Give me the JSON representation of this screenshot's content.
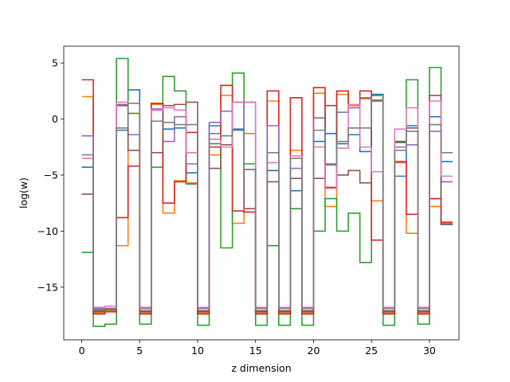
{
  "chart_data": {
    "type": "line",
    "step": "post",
    "title": "",
    "xlabel": "z dimension",
    "ylabel": "log(w)",
    "xlim": [
      -1.55,
      32.55
    ],
    "ylim": [
      -19.7,
      6.5
    ],
    "xticks": [
      0,
      5,
      10,
      15,
      20,
      25,
      30
    ],
    "yticks": [
      -15,
      -10,
      -5,
      0,
      5
    ],
    "grid": false,
    "x": [
      0,
      1,
      2,
      3,
      4,
      5,
      6,
      7,
      8,
      9,
      10,
      11,
      12,
      13,
      14,
      15,
      16,
      17,
      18,
      19,
      20,
      21,
      22,
      23,
      24,
      25,
      26,
      27,
      28,
      29,
      30,
      31
    ],
    "series": [
      {
        "color": "#1f77b4",
        "values": [
          -4.3,
          -17.2,
          -17.0,
          -1.0,
          2.6,
          -17.2,
          0.8,
          -0.9,
          -0.8,
          -4.8,
          -17.2,
          -0.6,
          -1.5,
          -0.9,
          1.5,
          -17.2,
          -4.6,
          -17.2,
          -6.4,
          -17.2,
          -2.0,
          -1.3,
          -2.2,
          -1.4,
          -2.9,
          2.2,
          -17.2,
          -5.1,
          -0.6,
          -17.2,
          0.2,
          -3.8
        ]
      },
      {
        "color": "#ff7f0e",
        "values": [
          2.0,
          -17.3,
          -17.1,
          -11.3,
          0.5,
          -17.3,
          1.3,
          -8.4,
          -5.5,
          -5.7,
          -17.3,
          -3.2,
          2.1,
          -9.3,
          -1.3,
          -17.3,
          1.6,
          -17.3,
          -2.8,
          -17.3,
          2.3,
          -7.8,
          2.2,
          1.2,
          1.8,
          -7.3,
          -17.3,
          -3.9,
          -10.2,
          -17.3,
          -7.8,
          -9.3
        ]
      },
      {
        "color": "#2ca02c",
        "values": [
          -11.9,
          -18.5,
          -18.3,
          5.4,
          0.5,
          -18.3,
          -4.3,
          3.8,
          2.5,
          -5.8,
          -18.4,
          -2.2,
          -11.5,
          4.1,
          -4.0,
          -18.4,
          -11.3,
          -18.4,
          -8.0,
          -18.4,
          -10.0,
          -7.1,
          -10.0,
          -8.4,
          -12.8,
          2.1,
          -18.4,
          -2.1,
          3.5,
          -18.3,
          4.6,
          -9.4
        ]
      },
      {
        "color": "#d62728",
        "values": [
          3.5,
          -17.4,
          -17.2,
          -8.8,
          -4.2,
          -17.4,
          1.4,
          -7.5,
          -5.6,
          -1.2,
          -17.4,
          -2.5,
          3.0,
          -8.2,
          -8.3,
          -17.4,
          2.5,
          -17.4,
          1.9,
          -17.4,
          2.8,
          -6.1,
          2.5,
          1.3,
          2.5,
          -10.8,
          -17.4,
          -3.8,
          -8.5,
          -17.4,
          -7.1,
          -9.2
        ]
      },
      {
        "color": "#9467bd",
        "values": [
          -1.5,
          -16.9,
          -16.9,
          1.3,
          -1.4,
          -16.9,
          0.9,
          -2.0,
          0.2,
          -4.0,
          -16.9,
          -0.3,
          0.7,
          1.5,
          -4.5,
          -16.9,
          -0.6,
          -16.9,
          -4.4,
          -16.9,
          0.1,
          -4.1,
          0.6,
          1.0,
          1.9,
          -4.7,
          -16.9,
          -2.5,
          -2.3,
          -16.9,
          -1.1,
          -5.6
        ]
      },
      {
        "color": "#8c564b",
        "values": [
          -6.7,
          -17.1,
          -17.0,
          1.2,
          -2.8,
          -17.1,
          -3.0,
          1.2,
          1.3,
          1.5,
          -17.1,
          -4.4,
          -2.3,
          -1.0,
          -8.0,
          -17.1,
          -5.6,
          -17.1,
          -5.3,
          -17.1,
          -5.3,
          1.2,
          -5.0,
          -4.6,
          -5.7,
          1.6,
          -17.1,
          -2.0,
          -0.8,
          -17.1,
          2.1,
          -9.4
        ]
      },
      {
        "color": "#e377c2",
        "values": [
          -3.5,
          -16.8,
          -16.7,
          1.5,
          1.4,
          -16.8,
          0.8,
          1.0,
          0.8,
          -3.0,
          -16.8,
          -1.8,
          -2.5,
          1.5,
          1.5,
          -16.8,
          -3.9,
          -16.8,
          -3.3,
          -16.8,
          -2.5,
          -6.2,
          -2.6,
          1.3,
          -2.5,
          -4.7,
          -16.8,
          -0.9,
          1.0,
          -16.8,
          1.6,
          -5.1
        ]
      },
      {
        "color": "#7f7f7f",
        "values": [
          -3.2,
          -17.0,
          -16.9,
          -0.8,
          1.4,
          -16.9,
          -0.2,
          -0.3,
          -0.5,
          -0.5,
          -16.9,
          -1.3,
          -1.5,
          -1.0,
          -4.5,
          -16.9,
          -3.0,
          -16.9,
          -3.5,
          -16.9,
          -1.0,
          -4.0,
          -2.0,
          -0.8,
          -0.8,
          1.7,
          -16.9,
          -2.8,
          -1.1,
          -16.9,
          -0.5,
          -3.0
        ]
      }
    ]
  }
}
